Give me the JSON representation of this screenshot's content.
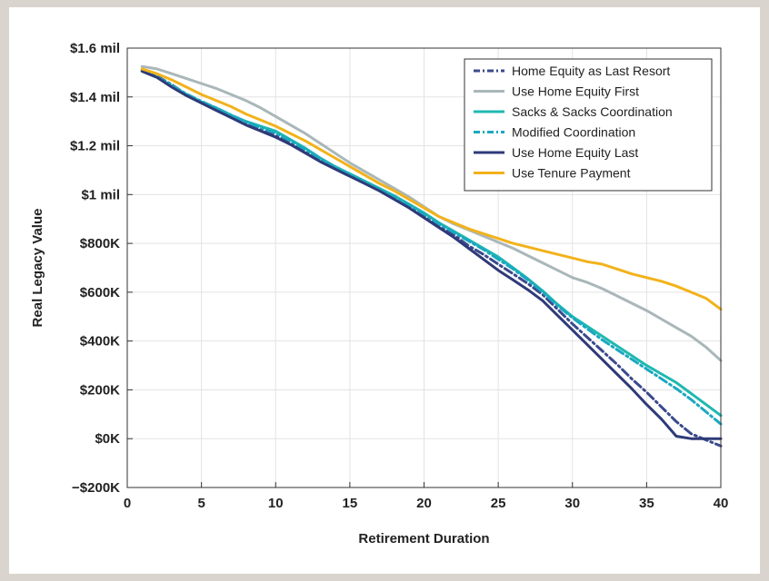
{
  "chart_data": {
    "type": "line",
    "title": "",
    "xlabel": "Retirement Duration",
    "ylabel": "Real Legacy Value",
    "xlim": [
      0,
      40
    ],
    "ylim": [
      -200000,
      1600000
    ],
    "grid": true,
    "legend_position": "top-right",
    "x_ticks": [
      {
        "value": 0,
        "label": "0"
      },
      {
        "value": 5,
        "label": "5"
      },
      {
        "value": 10,
        "label": "10"
      },
      {
        "value": 15,
        "label": "15"
      },
      {
        "value": 20,
        "label": "20"
      },
      {
        "value": 25,
        "label": "25"
      },
      {
        "value": 30,
        "label": "30"
      },
      {
        "value": 35,
        "label": "35"
      },
      {
        "value": 40,
        "label": "40"
      }
    ],
    "y_ticks": [
      {
        "value": 1600000,
        "label": "$1.6 mil"
      },
      {
        "value": 1400000,
        "label": "$1.4 mil"
      },
      {
        "value": 1200000,
        "label": "$1.2 mil"
      },
      {
        "value": 1000000,
        "label": "$1 mil"
      },
      {
        "value": 800000,
        "label": "$800K"
      },
      {
        "value": 600000,
        "label": "$600K"
      },
      {
        "value": 400000,
        "label": "$400K"
      },
      {
        "value": 200000,
        "label": "$200K"
      },
      {
        "value": 0,
        "label": "$0K"
      },
      {
        "value": -200000,
        "label": "−$200K"
      }
    ],
    "x": [
      1,
      2,
      3,
      4,
      5,
      6,
      7,
      8,
      9,
      10,
      11,
      12,
      13,
      14,
      15,
      16,
      17,
      18,
      19,
      20,
      21,
      22,
      23,
      24,
      25,
      26,
      27,
      28,
      29,
      30,
      31,
      32,
      33,
      34,
      35,
      36,
      37,
      38,
      39,
      40
    ],
    "series": [
      {
        "name": "Home Equity as Last Resort",
        "color": "#3b4a8c",
        "dash": "dashdot",
        "values": [
          1510000,
          1485000,
          1450000,
          1410000,
          1380000,
          1350000,
          1320000,
          1290000,
          1265000,
          1240000,
          1210000,
          1175000,
          1140000,
          1110000,
          1080000,
          1050000,
          1020000,
          985000,
          950000,
          910000,
          870000,
          835000,
          790000,
          755000,
          715000,
          675000,
          635000,
          590000,
          530000,
          470000,
          415000,
          360000,
          305000,
          245000,
          190000,
          130000,
          70000,
          20000,
          -5000,
          -30000
        ]
      },
      {
        "name": "Use Home Equity First",
        "color": "#a9b7b9",
        "dash": "solid",
        "values": [
          1525000,
          1515000,
          1495000,
          1475000,
          1455000,
          1435000,
          1410000,
          1385000,
          1355000,
          1320000,
          1285000,
          1250000,
          1210000,
          1170000,
          1130000,
          1095000,
          1060000,
          1025000,
          990000,
          950000,
          910000,
          880000,
          855000,
          830000,
          805000,
          780000,
          750000,
          720000,
          690000,
          660000,
          640000,
          615000,
          585000,
          555000,
          525000,
          490000,
          455000,
          420000,
          375000,
          320000
        ]
      },
      {
        "name": "Sacks & Sacks Coordination",
        "color": "#1fb8b0",
        "dash": "solid",
        "values": [
          1505000,
          1480000,
          1445000,
          1410000,
          1380000,
          1355000,
          1325000,
          1300000,
          1280000,
          1260000,
          1225000,
          1190000,
          1150000,
          1115000,
          1085000,
          1055000,
          1025000,
          995000,
          960000,
          925000,
          885000,
          850000,
          815000,
          780000,
          745000,
          700000,
          655000,
          605000,
          550000,
          500000,
          460000,
          420000,
          380000,
          340000,
          300000,
          265000,
          230000,
          185000,
          140000,
          95000
        ]
      },
      {
        "name": "Modified Coordination",
        "color": "#1aa8c0",
        "dash": "dashdot",
        "values": [
          1508000,
          1483000,
          1448000,
          1412000,
          1382000,
          1355000,
          1326000,
          1298000,
          1274000,
          1252000,
          1220000,
          1185000,
          1148000,
          1112000,
          1082000,
          1052000,
          1022000,
          990000,
          957000,
          920000,
          880000,
          845000,
          810000,
          775000,
          735000,
          695000,
          650000,
          600000,
          545000,
          495000,
          450000,
          405000,
          365000,
          325000,
          285000,
          245000,
          205000,
          160000,
          110000,
          60000
        ]
      },
      {
        "name": "Use Home Equity Last",
        "color": "#2e3a78",
        "dash": "solid",
        "values": [
          1505000,
          1480000,
          1440000,
          1405000,
          1375000,
          1345000,
          1315000,
          1285000,
          1260000,
          1235000,
          1205000,
          1170000,
          1135000,
          1105000,
          1075000,
          1045000,
          1015000,
          980000,
          945000,
          905000,
          865000,
          825000,
          780000,
          735000,
          690000,
          650000,
          610000,
          565000,
          505000,
          445000,
          385000,
          325000,
          265000,
          205000,
          140000,
          80000,
          10000,
          0,
          0,
          0
        ]
      },
      {
        "name": "Use Tenure Payment",
        "color": "#f2b21b",
        "dash": "solid",
        "values": [
          1515000,
          1495000,
          1470000,
          1440000,
          1410000,
          1385000,
          1360000,
          1330000,
          1305000,
          1280000,
          1250000,
          1220000,
          1185000,
          1150000,
          1115000,
          1080000,
          1045000,
          1015000,
          980000,
          945000,
          910000,
          885000,
          860000,
          840000,
          820000,
          800000,
          785000,
          770000,
          755000,
          740000,
          725000,
          715000,
          695000,
          675000,
          660000,
          645000,
          625000,
          600000,
          575000,
          530000
        ]
      }
    ]
  }
}
